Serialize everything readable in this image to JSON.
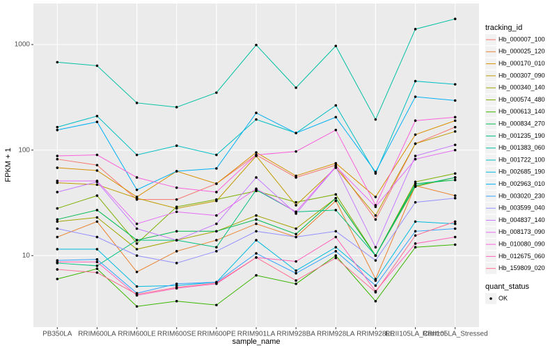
{
  "chart_data": {
    "type": "line",
    "x_label": "sample_name",
    "y_label": "FPKM + 1",
    "log_y": true,
    "grid": true,
    "legend_title": "tracking_id",
    "legend_position": "right",
    "categories": [
      "PB350LA",
      "RRIM600LA",
      "RRIM600LE",
      "RRIM600SE",
      "RRIM600PE",
      "RRIM901LA",
      "RRIM928BA",
      "RRIM928LA",
      "RRIM928LE",
      "RRII105LA_Control",
      "RRII105LA_Stressed"
    ],
    "ylim": [
      2.1,
      2450
    ],
    "yticks": [
      10,
      100,
      1000
    ],
    "point_color": "#000000",
    "series": [
      {
        "name": "Hb_000007_100",
        "color": "#F8766D",
        "values": [
          82,
          72,
          34,
          34,
          48,
          90,
          55,
          72,
          22,
          115,
          165
        ]
      },
      {
        "name": "Hb_000025_120",
        "color": "#EA8331",
        "values": [
          15,
          21,
          7,
          11,
          14,
          20,
          15,
          33,
          6,
          46,
          37
        ]
      },
      {
        "name": "Hb_000170_010",
        "color": "#D89000",
        "values": [
          68,
          64,
          36,
          63,
          48,
          95,
          57,
          75,
          36,
          140,
          190
        ]
      },
      {
        "name": "Hb_000307_090",
        "color": "#C09B00",
        "values": [
          49,
          47,
          35,
          28,
          33,
          88,
          30,
          68,
          24,
          115,
          150
        ]
      },
      {
        "name": "Hb_000340_140",
        "color": "#A3A500",
        "values": [
          21,
          23,
          11.5,
          14,
          17,
          24,
          18,
          35,
          10,
          45,
          55
        ]
      },
      {
        "name": "Hb_000574_480",
        "color": "#7CAE00",
        "values": [
          28,
          37,
          13,
          29,
          34,
          41,
          32,
          38,
          10,
          50,
          60
        ]
      },
      {
        "name": "Hb_000613_140",
        "color": "#39B600",
        "values": [
          6,
          7.5,
          3.3,
          3.7,
          3.4,
          6.5,
          5.4,
          10,
          3.7,
          12,
          12.7
        ]
      },
      {
        "name": "Hb_000834_270",
        "color": "#00BB4E",
        "values": [
          22,
          27,
          14,
          17,
          17,
          22,
          16,
          35,
          10,
          48,
          52
        ]
      },
      {
        "name": "Hb_001235_190",
        "color": "#00BF7D",
        "values": [
          8.5,
          8,
          14,
          14,
          12,
          42,
          26,
          27,
          10,
          46,
          55
        ]
      },
      {
        "name": "Hb_001383_060",
        "color": "#00C1A3",
        "values": [
          680,
          630,
          280,
          255,
          350,
          990,
          390,
          970,
          195,
          1400,
          1750
        ]
      },
      {
        "name": "Hb_001722_100",
        "color": "#00BFC4",
        "values": [
          165,
          210,
          90,
          110,
          90,
          195,
          145,
          265,
          60,
          450,
          420
        ]
      },
      {
        "name": "Hb_002685_190",
        "color": "#00BAE0",
        "values": [
          11.5,
          11.5,
          5.1,
          5.2,
          5.6,
          14,
          7.2,
          12,
          5.8,
          21,
          20
        ]
      },
      {
        "name": "Hb_002963_010",
        "color": "#00B0F6",
        "values": [
          155,
          185,
          42,
          63,
          67,
          225,
          145,
          205,
          62,
          320,
          295
        ]
      },
      {
        "name": "Hb_003020_230",
        "color": "#35A2FF",
        "values": [
          9,
          9.2,
          4.4,
          5.4,
          5.6,
          10.5,
          6.8,
          11,
          5.2,
          17,
          18
        ]
      },
      {
        "name": "Hb_003599_040",
        "color": "#9590FF",
        "values": [
          18,
          15,
          10,
          8.5,
          11,
          17,
          15,
          17,
          9,
          32,
          35
        ]
      },
      {
        "name": "Hb_004837_140",
        "color": "#C77CFF",
        "values": [
          40,
          50,
          18,
          14,
          20,
          55,
          25,
          69,
          12,
          88,
          112
        ]
      },
      {
        "name": "Hb_008173_090",
        "color": "#E76BF3",
        "values": [
          51,
          51,
          20,
          26,
          24,
          43,
          26,
          70,
          29,
          82,
          100
        ]
      },
      {
        "name": "Hb_010080_090",
        "color": "#FA62DB",
        "values": [
          88,
          90,
          55,
          44,
          40,
          90,
          97,
          155,
          30,
          190,
          205
        ]
      },
      {
        "name": "Hb_012675_060",
        "color": "#FF62BC",
        "values": [
          8.7,
          8.7,
          4.2,
          4.9,
          5.4,
          9.6,
          8.8,
          15,
          4.6,
          13,
          15
        ]
      },
      {
        "name": "Hb_159809_020",
        "color": "#FF6C91",
        "values": [
          7.4,
          6.9,
          4.3,
          5,
          5.5,
          9.6,
          5.8,
          9.5,
          4.5,
          15.5,
          21
        ]
      }
    ],
    "quant_status_legend": {
      "title": "quant_status",
      "labels": [
        "OK"
      ]
    }
  }
}
